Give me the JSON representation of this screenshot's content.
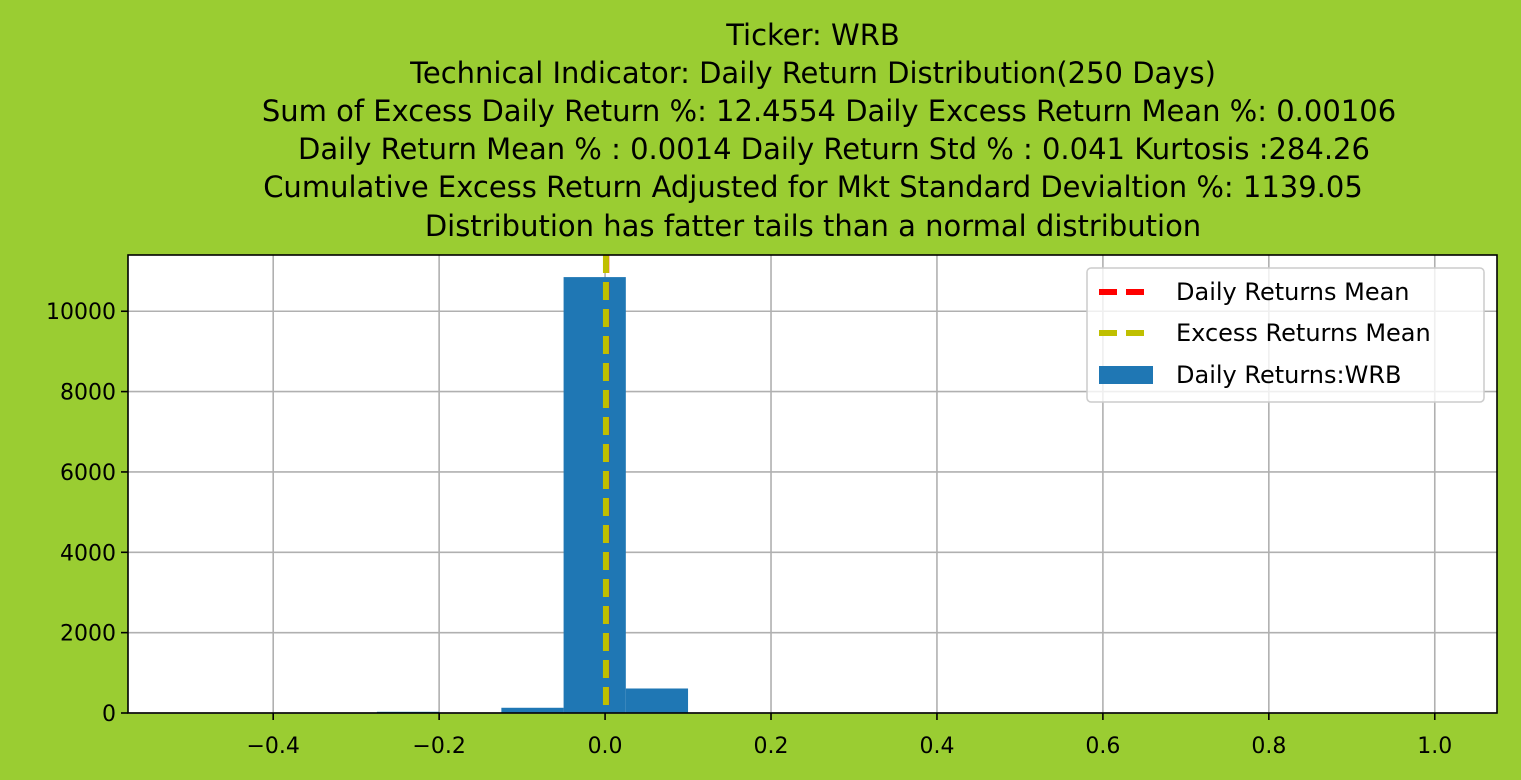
{
  "chart_data": {
    "type": "bar",
    "title_lines": [
      "Ticker: WRB",
      "Technical Indicator: Daily Return Distribution(250 Days)",
      "Sum of Excess Daily Return %: 12.4554   Daily Excess Return Mean %: 0.00106",
      "Daily Return Mean % : 0.0014    Daily Return Std % : 0.041  Kurtosis :284.26",
      "Cumulative Excess Return Adjusted for Mkt Standard Devialtion %: 1139.05",
      "Distribution has fatter tails than a normal distribution"
    ],
    "xlabel": "",
    "ylabel": "",
    "xlim": [
      -0.575,
      1.075
    ],
    "ylim": [
      0,
      11400
    ],
    "xticks": [
      -0.4,
      -0.2,
      0.0,
      0.2,
      0.4,
      0.6,
      0.8,
      1.0
    ],
    "xtick_labels": [
      "−0.4",
      "−0.2",
      "0.0",
      "0.2",
      "0.4",
      "0.6",
      "0.8",
      "1.0"
    ],
    "yticks": [
      0,
      2000,
      4000,
      6000,
      8000,
      10000
    ],
    "ytick_labels": [
      "0",
      "2000",
      "4000",
      "6000",
      "8000",
      "10000"
    ],
    "grid": true,
    "legend_position": "top-right",
    "bins": [
      {
        "x0": -0.5,
        "x1": -0.425,
        "count": 1
      },
      {
        "x0": -0.425,
        "x1": -0.35,
        "count": 2
      },
      {
        "x0": -0.35,
        "x1": -0.275,
        "count": 3
      },
      {
        "x0": -0.275,
        "x1": -0.2,
        "count": 30
      },
      {
        "x0": -0.2,
        "x1": -0.125,
        "count": 5
      },
      {
        "x0": -0.125,
        "x1": -0.05,
        "count": 130
      },
      {
        "x0": -0.05,
        "x1": 0.025,
        "count": 10850
      },
      {
        "x0": 0.025,
        "x1": 0.1,
        "count": 610
      },
      {
        "x0": 0.1,
        "x1": 0.175,
        "count": 3
      },
      {
        "x0": 0.175,
        "x1": 0.25,
        "count": 2
      },
      {
        "x0": 0.25,
        "x1": 0.325,
        "count": 1
      },
      {
        "x0": 0.325,
        "x1": 0.4,
        "count": 0
      },
      {
        "x0": 0.4,
        "x1": 0.475,
        "count": 0
      },
      {
        "x0": 0.475,
        "x1": 0.55,
        "count": 0
      },
      {
        "x0": 0.55,
        "x1": 0.625,
        "count": 0
      },
      {
        "x0": 0.625,
        "x1": 0.7,
        "count": 0
      },
      {
        "x0": 0.7,
        "x1": 0.775,
        "count": 0
      },
      {
        "x0": 0.775,
        "x1": 0.85,
        "count": 0
      },
      {
        "x0": 0.85,
        "x1": 0.925,
        "count": 0
      },
      {
        "x0": 0.925,
        "x1": 1.0,
        "count": 1
      }
    ],
    "mean_lines": [
      {
        "name": "Daily Returns Mean",
        "x": 0.0014,
        "color": "#ff0000"
      },
      {
        "name": "Excess Returns Mean",
        "x": 0.00106,
        "color": "#bfbf00"
      }
    ],
    "series": [
      {
        "name": "Daily Returns:WRB",
        "color": "#1f77b4"
      }
    ],
    "colors": {
      "background": "#9acd32",
      "plot_area": "#ffffff",
      "grid": "#b0b0b0",
      "bar": "#1f77b4"
    }
  }
}
